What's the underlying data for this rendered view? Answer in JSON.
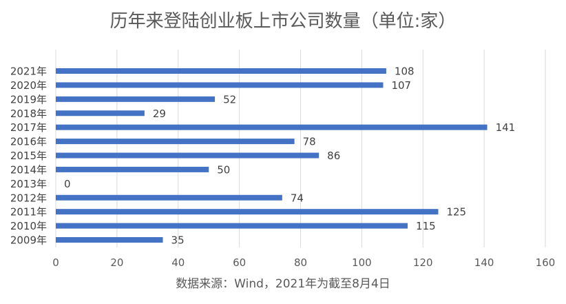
{
  "chart_data": {
    "type": "bar",
    "orientation": "horizontal",
    "title": "历年来登陆创业板上市公司数量（单位:家）",
    "caption": "数据来源：Wind，2021年为截至8月4日",
    "categories": [
      "2021年",
      "2020年",
      "2019年",
      "2018年",
      "2017年",
      "2016年",
      "2015年",
      "2014年",
      "2013年",
      "2012年",
      "2011年",
      "2010年",
      "2009年"
    ],
    "values": [
      108,
      107,
      52,
      29,
      141,
      78,
      86,
      50,
      0,
      74,
      125,
      115,
      35
    ],
    "xlim": [
      0,
      160
    ],
    "xticks": [
      0,
      20,
      40,
      60,
      80,
      100,
      120,
      140,
      160
    ],
    "grid": true,
    "bar_color": "#4472C4",
    "grid_color": "#d9d9d9"
  }
}
